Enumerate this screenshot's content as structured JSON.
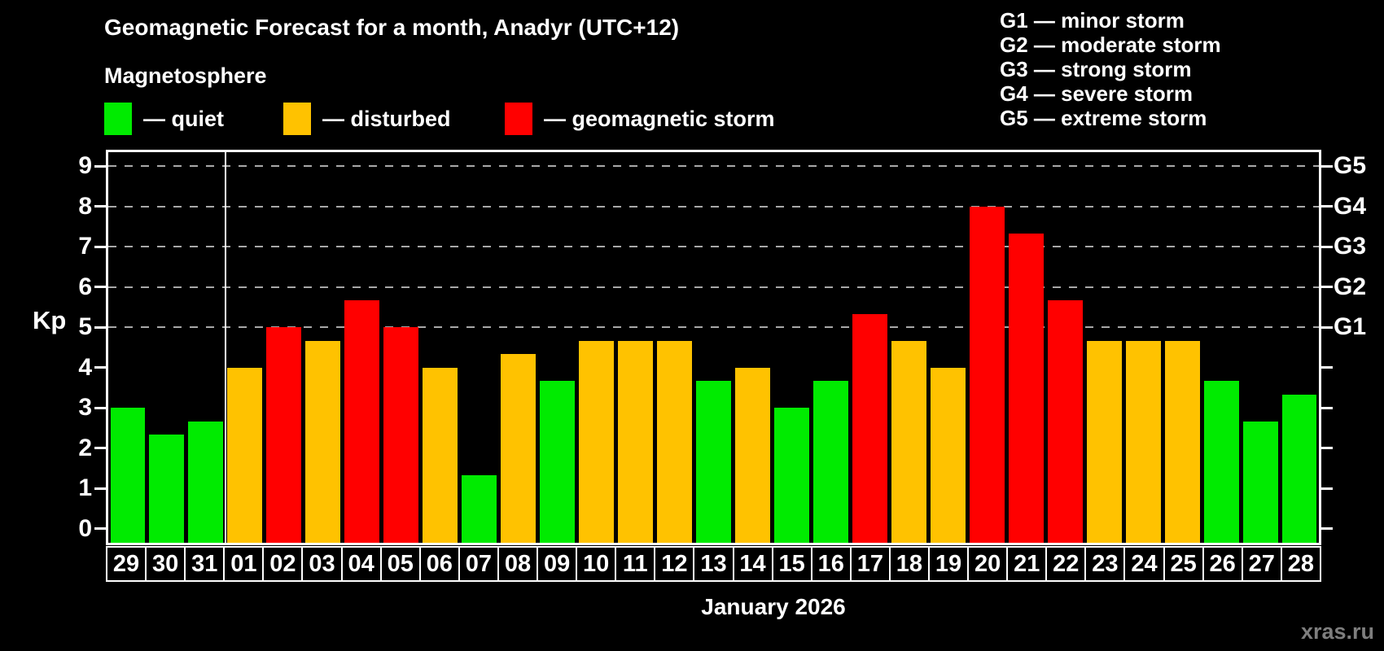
{
  "header": {
    "title": "Geomagnetic Forecast for a month, Anadyr (UTC+12)",
    "subtitle": "Magnetosphere"
  },
  "legend": {
    "items": [
      {
        "key": "quiet",
        "label": "— quiet"
      },
      {
        "key": "disturbed",
        "label": "— disturbed"
      },
      {
        "key": "storm",
        "label": "— geomagnetic storm"
      }
    ]
  },
  "g_legend": {
    "lines": [
      "G1 — minor storm",
      "G2 — moderate storm",
      "G3 — strong storm",
      "G4 — severe storm",
      "G5 — extreme storm"
    ]
  },
  "axes": {
    "y_label": "Kp",
    "x_label": "January 2026",
    "left_ticks": [
      0,
      1,
      2,
      3,
      4,
      5,
      6,
      7,
      8,
      9
    ],
    "right_labels": [
      {
        "kp": 5,
        "label": "G1"
      },
      {
        "kp": 6,
        "label": "G2"
      },
      {
        "kp": 7,
        "label": "G3"
      },
      {
        "kp": 8,
        "label": "G4"
      },
      {
        "kp": 9,
        "label": "G5"
      }
    ]
  },
  "watermark": "xras.ru",
  "colors": {
    "background": "#000000",
    "text": "#FFFFFF",
    "grid": "#A8A8A8",
    "watermark": "#7E7E7E",
    "quiet": "#00EB00",
    "disturbed": "#FFC200",
    "storm": "#FF0000"
  },
  "chart_data": {
    "type": "bar",
    "title": "Geomagnetic Forecast for a month, Anadyr (UTC+12)",
    "xlabel": "January 2026",
    "ylabel": "Kp",
    "ylim": [
      -0.35,
      9.35
    ],
    "gridlines_y": [
      5,
      6,
      7,
      8,
      9
    ],
    "grid": "dashed horizontal lines at Kp 5-9 only",
    "legend_position": "top-left",
    "month_separator_after_index": 2,
    "categories": [
      "29",
      "30",
      "31",
      "01",
      "02",
      "03",
      "04",
      "05",
      "06",
      "07",
      "08",
      "09",
      "10",
      "11",
      "12",
      "13",
      "14",
      "15",
      "16",
      "17",
      "18",
      "19",
      "20",
      "21",
      "22",
      "23",
      "24",
      "25",
      "26",
      "27",
      "28"
    ],
    "values": [
      3.0,
      2.33,
      2.67,
      4.0,
      5.0,
      4.67,
      5.67,
      5.0,
      4.0,
      1.33,
      4.33,
      3.67,
      4.67,
      4.67,
      4.67,
      3.67,
      4.0,
      3.0,
      3.67,
      5.33,
      4.67,
      4.0,
      8.0,
      7.33,
      5.67,
      4.67,
      4.67,
      4.67,
      3.67,
      2.67,
      3.33
    ],
    "statuses": [
      "quiet",
      "quiet",
      "quiet",
      "disturbed",
      "storm",
      "disturbed",
      "storm",
      "storm",
      "disturbed",
      "quiet",
      "disturbed",
      "quiet",
      "disturbed",
      "disturbed",
      "disturbed",
      "quiet",
      "disturbed",
      "quiet",
      "quiet",
      "storm",
      "disturbed",
      "disturbed",
      "storm",
      "storm",
      "storm",
      "disturbed",
      "disturbed",
      "disturbed",
      "quiet",
      "quiet",
      "quiet"
    ]
  }
}
